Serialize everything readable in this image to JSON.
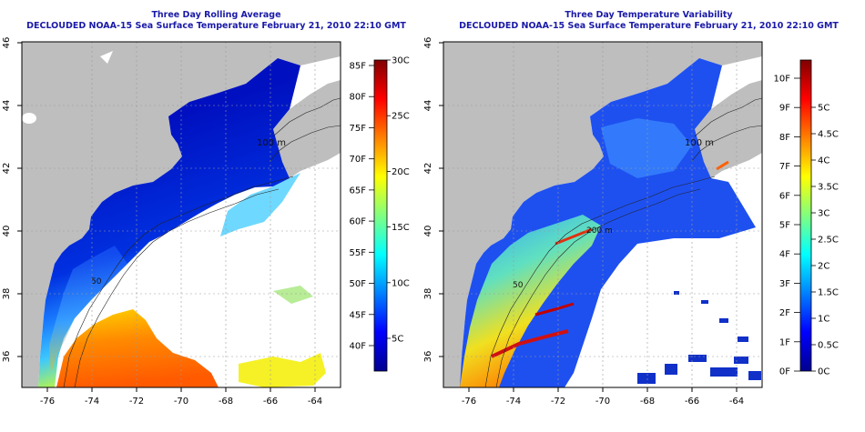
{
  "panels": [
    {
      "title_line1": "Three Day Rolling Average",
      "title_line2": "DECLOUDED NOAA-15 Sea Surface Temperature February 21, 2010 22:10 GMT",
      "x_ticks": [
        "-76",
        "-74",
        "-72",
        "-70",
        "-68",
        "-66",
        "-64"
      ],
      "y_ticks": [
        "46",
        "44",
        "42",
        "40",
        "38",
        "36"
      ],
      "contour_labels": [
        "100 m",
        "50"
      ],
      "colorbar": {
        "left_labels": [
          "85F",
          "80F",
          "75F",
          "70F",
          "65F",
          "60F",
          "55F",
          "50F",
          "45F",
          "40F"
        ],
        "right_labels": [
          "30C",
          "25C",
          "20C",
          "15C",
          "10C",
          "5C"
        ],
        "colormap": [
          "#00008f",
          "#0000ff",
          "#0080ff",
          "#00ffff",
          "#80ff80",
          "#ffff00",
          "#ff8000",
          "#ff0000",
          "#800000"
        ]
      }
    },
    {
      "title_line1": "Three Day Temperature Variability",
      "title_line2": "DECLOUDED NOAA-15 Sea Surface Temperature February 21, 2010 22:10 GMT",
      "x_ticks": [
        "-76",
        "-74",
        "-72",
        "-70",
        "-68",
        "-66",
        "-64"
      ],
      "y_ticks": [
        "46",
        "44",
        "42",
        "40",
        "38",
        "36"
      ],
      "contour_labels": [
        "100 m",
        "200 m",
        "50"
      ],
      "colorbar": {
        "left_labels": [
          "10F",
          "9F",
          "8F",
          "7F",
          "6F",
          "5F",
          "4F",
          "3F",
          "2F",
          "1F",
          "0F"
        ],
        "right_labels": [
          "5C",
          "4.5C",
          "4C",
          "3.5C",
          "3C",
          "2.5C",
          "2C",
          "1.5C",
          "1C",
          "0.5C",
          "0C"
        ],
        "colormap": [
          "#00008f",
          "#0000ff",
          "#0080ff",
          "#00ffff",
          "#80ff80",
          "#ffff00",
          "#ff8000",
          "#ff0000",
          "#800000"
        ]
      }
    }
  ],
  "colors": {
    "land": "#bebebe",
    "no_data": "#ffffff",
    "title": "#1a1aa8",
    "grid": "#9a9a9a"
  }
}
